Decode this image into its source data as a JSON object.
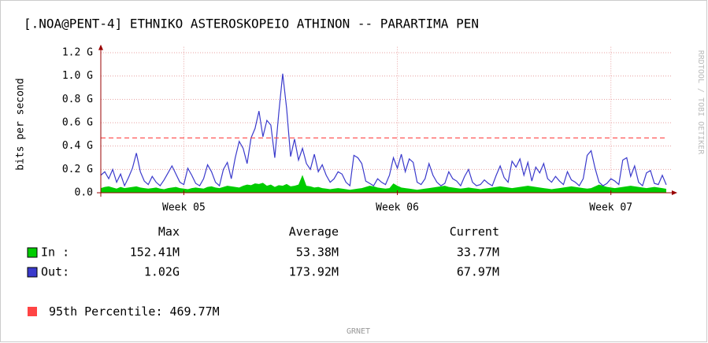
{
  "chart_data": {
    "type": "line",
    "title": "[.NOA@PENT-4] ETHNIKO ASTEROSKOPEIO ATHINON -- PARARTIMA PEN",
    "y_label": "bits per second",
    "categories": [
      null,
      null,
      null,
      null,
      null,
      null,
      null,
      null,
      null,
      null,
      null,
      null,
      null,
      null,
      null,
      null,
      null,
      null,
      null,
      null,
      null,
      "Week 05",
      null,
      null,
      null,
      null,
      null,
      null,
      null,
      null,
      null,
      null,
      null,
      null,
      null,
      null,
      null,
      null,
      null,
      null,
      null,
      null,
      null,
      null,
      null,
      null,
      null,
      null,
      null,
      null,
      null,
      null,
      null,
      null,
      null,
      null,
      null,
      null,
      null,
      null,
      null,
      null,
      null,
      null,
      null,
      null,
      null,
      null,
      null,
      null,
      null,
      null,
      null,
      null,
      null,
      "Week 06",
      null,
      null,
      null,
      null,
      null,
      null,
      null,
      null,
      null,
      null,
      null,
      null,
      null,
      null,
      null,
      null,
      null,
      null,
      null,
      null,
      null,
      null,
      null,
      null,
      null,
      null,
      null,
      null,
      null,
      null,
      null,
      null,
      null,
      null,
      null,
      null,
      null,
      null,
      null,
      null,
      null,
      null,
      null,
      null,
      null,
      null,
      null,
      null,
      null,
      null,
      null,
      null,
      null,
      "Week 07",
      null,
      null,
      null,
      null,
      null,
      null,
      null,
      null,
      null,
      null,
      null,
      null,
      null,
      null
    ],
    "series": [
      {
        "name": "In :",
        "color": "#00cc00",
        "style": "area",
        "values": [
          40000000.0,
          50000000.0,
          55000000.0,
          45000000.0,
          35000000.0,
          50000000.0,
          40000000.0,
          45000000.0,
          50000000.0,
          55000000.0,
          45000000.0,
          40000000.0,
          35000000.0,
          40000000.0,
          45000000.0,
          35000000.0,
          30000000.0,
          40000000.0,
          45000000.0,
          50000000.0,
          40000000.0,
          35000000.0,
          30000000.0,
          40000000.0,
          45000000.0,
          40000000.0,
          35000000.0,
          50000000.0,
          55000000.0,
          45000000.0,
          40000000.0,
          50000000.0,
          60000000.0,
          55000000.0,
          50000000.0,
          45000000.0,
          60000000.0,
          70000000.0,
          65000000.0,
          80000000.0,
          75000000.0,
          85000000.0,
          60000000.0,
          70000000.0,
          50000000.0,
          65000000.0,
          60000000.0,
          75000000.0,
          55000000.0,
          60000000.0,
          70000000.0,
          152410000.0,
          60000000.0,
          55000000.0,
          45000000.0,
          50000000.0,
          40000000.0,
          35000000.0,
          30000000.0,
          35000000.0,
          40000000.0,
          35000000.0,
          30000000.0,
          25000000.0,
          30000000.0,
          35000000.0,
          40000000.0,
          50000000.0,
          60000000.0,
          55000000.0,
          45000000.0,
          40000000.0,
          35000000.0,
          40000000.0,
          80000000.0,
          60000000.0,
          45000000.0,
          40000000.0,
          35000000.0,
          30000000.0,
          25000000.0,
          30000000.0,
          35000000.0,
          40000000.0,
          45000000.0,
          50000000.0,
          55000000.0,
          60000000.0,
          50000000.0,
          45000000.0,
          40000000.0,
          35000000.0,
          40000000.0,
          45000000.0,
          40000000.0,
          35000000.0,
          30000000.0,
          35000000.0,
          40000000.0,
          45000000.0,
          50000000.0,
          55000000.0,
          50000000.0,
          45000000.0,
          40000000.0,
          45000000.0,
          50000000.0,
          55000000.0,
          60000000.0,
          55000000.0,
          50000000.0,
          45000000.0,
          40000000.0,
          35000000.0,
          30000000.0,
          35000000.0,
          40000000.0,
          45000000.0,
          50000000.0,
          55000000.0,
          50000000.0,
          45000000.0,
          40000000.0,
          35000000.0,
          40000000.0,
          55000000.0,
          70000000.0,
          60000000.0,
          50000000.0,
          45000000.0,
          40000000.0,
          45000000.0,
          50000000.0,
          55000000.0,
          60000000.0,
          55000000.0,
          50000000.0,
          45000000.0,
          40000000.0,
          45000000.0,
          50000000.0,
          45000000.0,
          40000000.0,
          34000000.0
        ],
        "stats": [
          "152.41M",
          "53.38M",
          "33.77M"
        ]
      },
      {
        "name": "Out:",
        "color": "#3a3acc",
        "style": "line",
        "values": [
          150000000.0,
          180000000.0,
          120000000.0,
          200000000.0,
          90000000.0,
          160000000.0,
          60000000.0,
          130000000.0,
          210000000.0,
          340000000.0,
          180000000.0,
          100000000.0,
          70000000.0,
          140000000.0,
          90000000.0,
          60000000.0,
          110000000.0,
          170000000.0,
          230000000.0,
          160000000.0,
          90000000.0,
          70000000.0,
          210000000.0,
          150000000.0,
          80000000.0,
          60000000.0,
          120000000.0,
          240000000.0,
          180000000.0,
          90000000.0,
          60000000.0,
          200000000.0,
          260000000.0,
          120000000.0,
          300000000.0,
          440000000.0,
          380000000.0,
          250000000.0,
          470000000.0,
          550000000.0,
          700000000.0,
          480000000.0,
          620000000.0,
          580000000.0,
          300000000.0,
          680000000.0,
          1020000000.0,
          720000000.0,
          310000000.0,
          460000000.0,
          280000000.0,
          380000000.0,
          250000000.0,
          200000000.0,
          330000000.0,
          180000000.0,
          240000000.0,
          150000000.0,
          90000000.0,
          120000000.0,
          180000000.0,
          160000000.0,
          90000000.0,
          60000000.0,
          320000000.0,
          300000000.0,
          250000000.0,
          100000000.0,
          80000000.0,
          60000000.0,
          120000000.0,
          90000000.0,
          70000000.0,
          150000000.0,
          300000000.0,
          210000000.0,
          330000000.0,
          180000000.0,
          290000000.0,
          260000000.0,
          90000000.0,
          70000000.0,
          120000000.0,
          250000000.0,
          150000000.0,
          90000000.0,
          60000000.0,
          80000000.0,
          180000000.0,
          120000000.0,
          100000000.0,
          60000000.0,
          140000000.0,
          200000000.0,
          90000000.0,
          60000000.0,
          70000000.0,
          110000000.0,
          80000000.0,
          60000000.0,
          150000000.0,
          230000000.0,
          130000000.0,
          90000000.0,
          270000000.0,
          220000000.0,
          290000000.0,
          150000000.0,
          260000000.0,
          100000000.0,
          220000000.0,
          170000000.0,
          250000000.0,
          120000000.0,
          90000000.0,
          140000000.0,
          100000000.0,
          70000000.0,
          180000000.0,
          110000000.0,
          90000000.0,
          60000000.0,
          120000000.0,
          320000000.0,
          360000000.0,
          210000000.0,
          90000000.0,
          60000000.0,
          80000000.0,
          120000000.0,
          100000000.0,
          70000000.0,
          280000000.0,
          300000000.0,
          140000000.0,
          230000000.0,
          90000000.0,
          60000000.0,
          170000000.0,
          190000000.0,
          80000000.0,
          70000000.0,
          150000000.0,
          68000000.0
        ],
        "stats": [
          "1.02G",
          "173.92M",
          "67.97M"
        ]
      }
    ],
    "stat_headers": [
      "Max",
      "Average",
      "Current"
    ],
    "percentile": {
      "name": "95th Percentile:",
      "value": 469770000,
      "value_label": "469.77M",
      "color": "#ff4444"
    },
    "ylim": [
      0,
      1250000000.0
    ],
    "yticks": [
      {
        "value": 0,
        "label": "0.0"
      },
      {
        "value": 200000000.0,
        "label": "0.2 G"
      },
      {
        "value": 400000000.0,
        "label": "0.4 G"
      },
      {
        "value": 600000000.0,
        "label": "0.6 G"
      },
      {
        "value": 800000000.0,
        "label": "0.8 G"
      },
      {
        "value": 1000000000.0,
        "label": "1.0 G"
      },
      {
        "value": 1200000000.0,
        "label": "1.2 G"
      }
    ],
    "grid": true,
    "watermark": "RRDTOOL / TOBI OETIKER",
    "footer": "GRNET"
  }
}
